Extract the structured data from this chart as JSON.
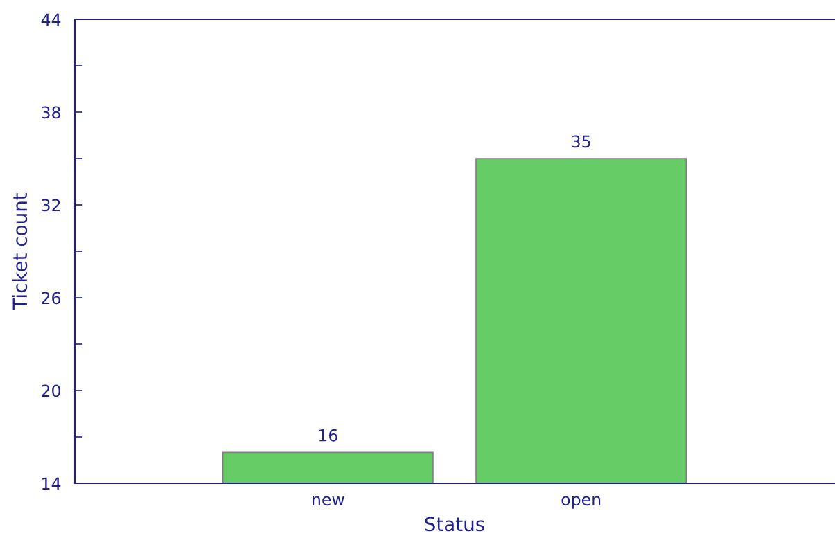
{
  "chart_data": {
    "type": "bar",
    "xlabel": "Status",
    "ylabel": "Ticket count",
    "categories": [
      "new",
      "open"
    ],
    "values": [
      16,
      35
    ],
    "color": "#66cc66",
    "ylim": [
      14,
      44
    ],
    "yticks": [
      14,
      {
        "value": 17,
        "label": null
      },
      20,
      {
        "value": 23,
        "label": null
      },
      26,
      {
        "value": 29,
        "label": null
      },
      32,
      {
        "value": 35,
        "label": null
      },
      38,
      {
        "value": 41,
        "label": null
      },
      44
    ],
    "data_labels": true,
    "grid": false,
    "legend": false
  }
}
